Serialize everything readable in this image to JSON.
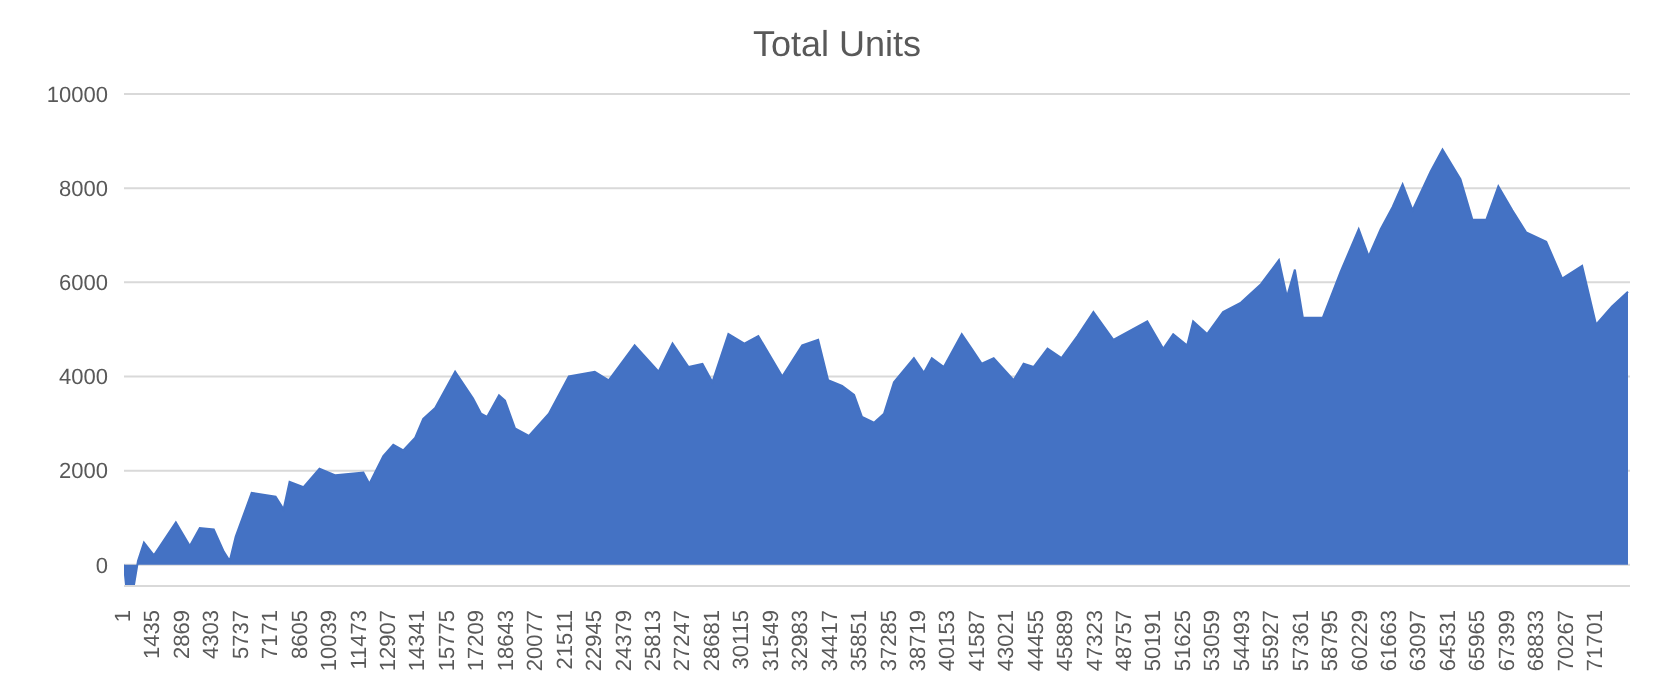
{
  "chart_data": {
    "type": "area",
    "title": "Total Units",
    "x": [
      1,
      98,
      487,
      681,
      973,
      1458,
      2527,
      3207,
      3693,
      4373,
      4859,
      5150,
      5441,
      5927,
      6219,
      7385,
      7773,
      8065,
      8745,
      9522,
      10299,
      11659,
      11950,
      12631,
      13116,
      13602,
      14185,
      14574,
      15157,
      16128,
      17003,
      17391,
      17683,
      18266,
      18557,
      19043,
      19723,
      20695,
      21666,
      22929,
      23609,
      24872,
      26037,
      26717,
      27495,
      28175,
      28660,
      29438,
      30215,
      30895,
      32061,
      33033,
      33810,
      34296,
      34976,
      35559,
      35946,
      36530,
      37015,
      37501,
      38473,
      38958,
      39347,
      39930,
      40804,
      41290,
      41776,
      42359,
      43330,
      43816,
      44302,
      44982,
      45662,
      46439,
      47216,
      48187,
      49839,
      50616,
      51102,
      51782,
      52073,
      52753,
      53530,
      54405,
      55376,
      56251,
      56640,
      57028,
      57417,
      58389,
      59263,
      60137,
      60623,
      61206,
      61789,
      62275,
      62761,
      63635,
      64218,
      65092,
      65675,
      66355,
      66938,
      67618,
      68297,
      69269,
      70046,
      71018,
      71698,
      72475,
      73252
    ],
    "series": [
      {
        "color": "#4472c4",
        "values": [
          0,
          -430,
          -430,
          80,
          470,
          200,
          900,
          400,
          780,
          750,
          280,
          80,
          600,
          1180,
          1530,
          1450,
          1180,
          1760,
          1650,
          2040,
          1900,
          1960,
          1720,
          2310,
          2550,
          2430,
          2700,
          3100,
          3330,
          4100,
          3530,
          3210,
          3140,
          3600,
          3490,
          2900,
          2740,
          3210,
          4000,
          4100,
          3920,
          4660,
          4100,
          4700,
          4200,
          4270,
          3880,
          4900,
          4700,
          4860,
          4000,
          4660,
          4780,
          3920,
          3800,
          3610,
          3140,
          3020,
          3210,
          3880,
          4390,
          4080,
          4390,
          4200,
          4900,
          4590,
          4270,
          4390,
          3920,
          4270,
          4200,
          4590,
          4390,
          4860,
          5370,
          4780,
          5170,
          4590,
          4900,
          4660,
          5170,
          4900,
          5370,
          5570,
          5960,
          6470,
          5690,
          6270,
          5250,
          5250,
          6230,
          7130,
          6550,
          7130,
          7600,
          8080,
          7530,
          8350,
          8820,
          8190,
          7330,
          7330,
          8040,
          7530,
          7060,
          6860,
          6080,
          6350,
          5100,
          5490,
          5800
        ]
      }
    ],
    "xlim": [
      1,
      73350
    ],
    "xticks": [
      1,
      1435,
      2869,
      4303,
      5737,
      7171,
      8605,
      10039,
      11473,
      12907,
      14341,
      15775,
      17209,
      18643,
      20077,
      21511,
      22945,
      24379,
      25813,
      27247,
      28681,
      30115,
      31549,
      32983,
      34417,
      35851,
      37285,
      38719,
      40153,
      41587,
      43021,
      44455,
      45889,
      47323,
      48757,
      50191,
      51625,
      53059,
      54493,
      55927,
      57361,
      58795,
      60229,
      61663,
      63097,
      64531,
      65965,
      67399,
      68833,
      70267,
      71701
    ],
    "ylim": [
      -450,
      10000
    ],
    "yticks": [
      0,
      2000,
      4000,
      6000,
      8000,
      10000
    ],
    "grid": "y"
  }
}
